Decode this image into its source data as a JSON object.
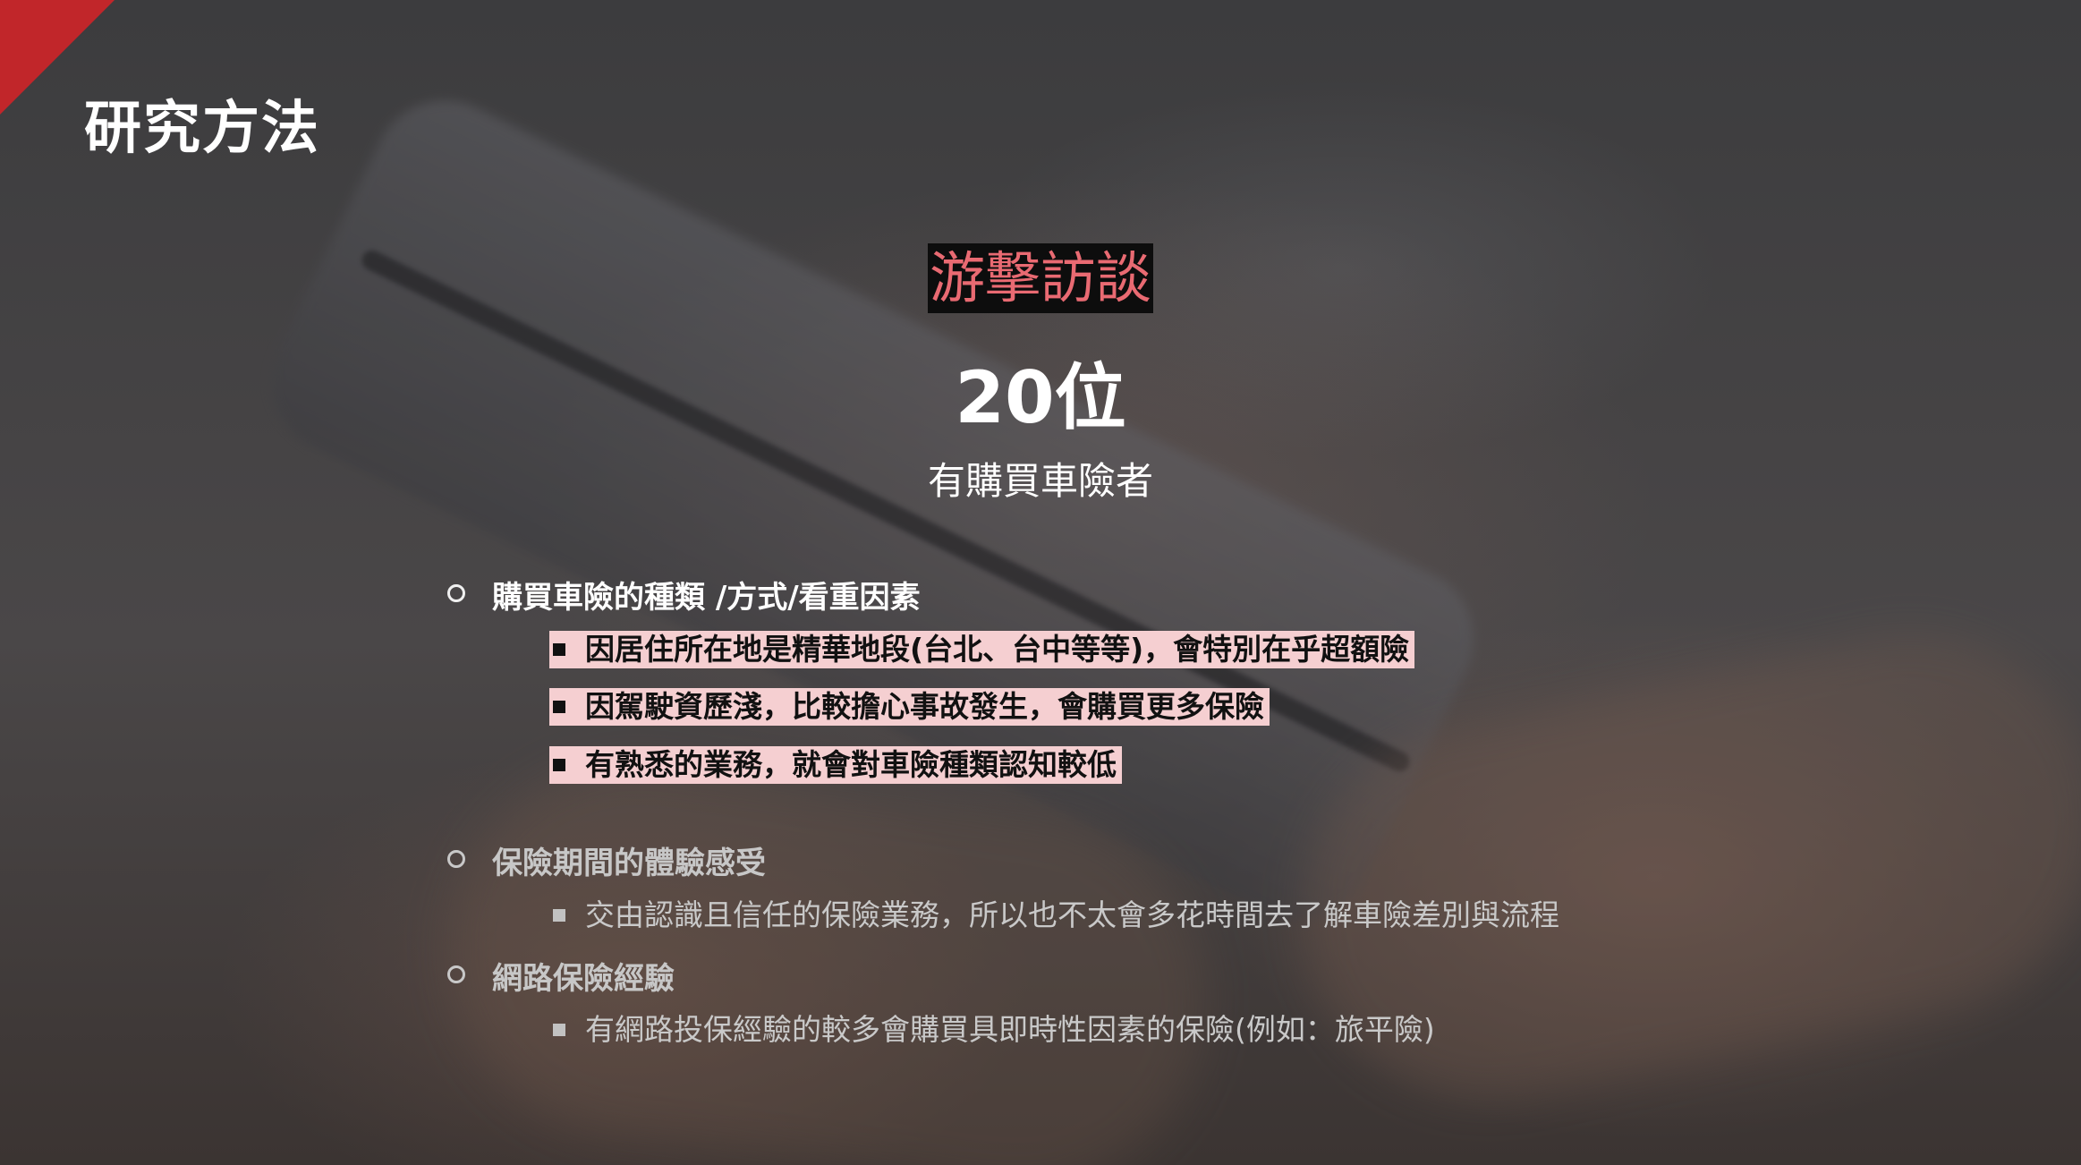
{
  "slide": {
    "title": "研究方法",
    "method": "游擊訪談",
    "count": "20位",
    "subject": "有購買車險者"
  },
  "sections": [
    {
      "heading": "購買車險的種類 /方式/看重因素",
      "items": [
        "因居住所在地是精華地段(台北、台中等等)，會特別在乎超額險",
        "因駕駛資歷淺，比較擔心事故發生，會購買更多保險",
        "有熟悉的業務，就會對車險種類認知較低"
      ]
    },
    {
      "heading": "保險期間的體驗感受",
      "items": [
        "交由認識且信任的保險業務，所以也不太會多花時間去了解車險差別與流程"
      ]
    },
    {
      "heading": "網路保險經驗",
      "items": [
        "有網路投保經驗的較多會購買具即時性因素的保險(例如：旅平險)"
      ]
    }
  ],
  "colors": {
    "accent_red": "#c1262a",
    "method_text": "#e96a72",
    "highlight_bg": "#f5cfd1"
  }
}
